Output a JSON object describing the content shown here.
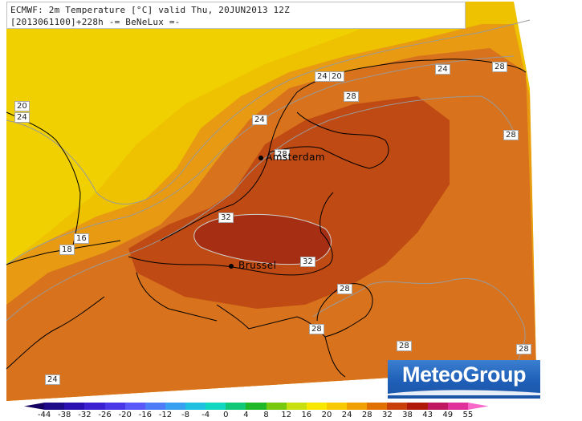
{
  "header": {
    "line1": "ECMWF: 2m Temperature [°C] valid Thu, 20JUN2013 12Z",
    "line2": "[2013061100]+228h  -= BeNeLux =-"
  },
  "cities": [
    {
      "name": "Amsterdam"
    },
    {
      "name": "Brussel"
    }
  ],
  "isotherm_labels": [
    "20",
    "24",
    "24",
    "20",
    "24",
    "28",
    "28",
    "28",
    "24",
    "28",
    "16",
    "18",
    "32",
    "32",
    "28",
    "28",
    "28",
    "24",
    "28"
  ],
  "logo": {
    "text": "MeteoGroup"
  },
  "colorbar": {
    "ticks": [
      "-44",
      "-38",
      "-32",
      "-26",
      "-20",
      "-16",
      "-12",
      "-8",
      "-4",
      "0",
      "4",
      "8",
      "12",
      "16",
      "20",
      "24",
      "28",
      "32",
      "38",
      "43",
      "49",
      "55"
    ],
    "colors": [
      "#130060",
      "#1c0a88",
      "#2a10b0",
      "#3a20d0",
      "#4a38e8",
      "#5a58f8",
      "#4c7cf8",
      "#38a0f0",
      "#20c0e0",
      "#10d8c0",
      "#10c878",
      "#20b828",
      "#78c810",
      "#c8e010",
      "#f8e800",
      "#f8c800",
      "#f0a000",
      "#e07000",
      "#c84008",
      "#b01808",
      "#c01860",
      "#e0309a",
      "#f868c8"
    ],
    "range_labels": [
      "below -44",
      "above 55"
    ]
  },
  "colors": {
    "sea_yellow": "#e8c010",
    "land_orange": "#d46a1c",
    "hot_core": "#a82c12",
    "border_line": "#000000",
    "isotherm_line": "#9a9a9a"
  }
}
